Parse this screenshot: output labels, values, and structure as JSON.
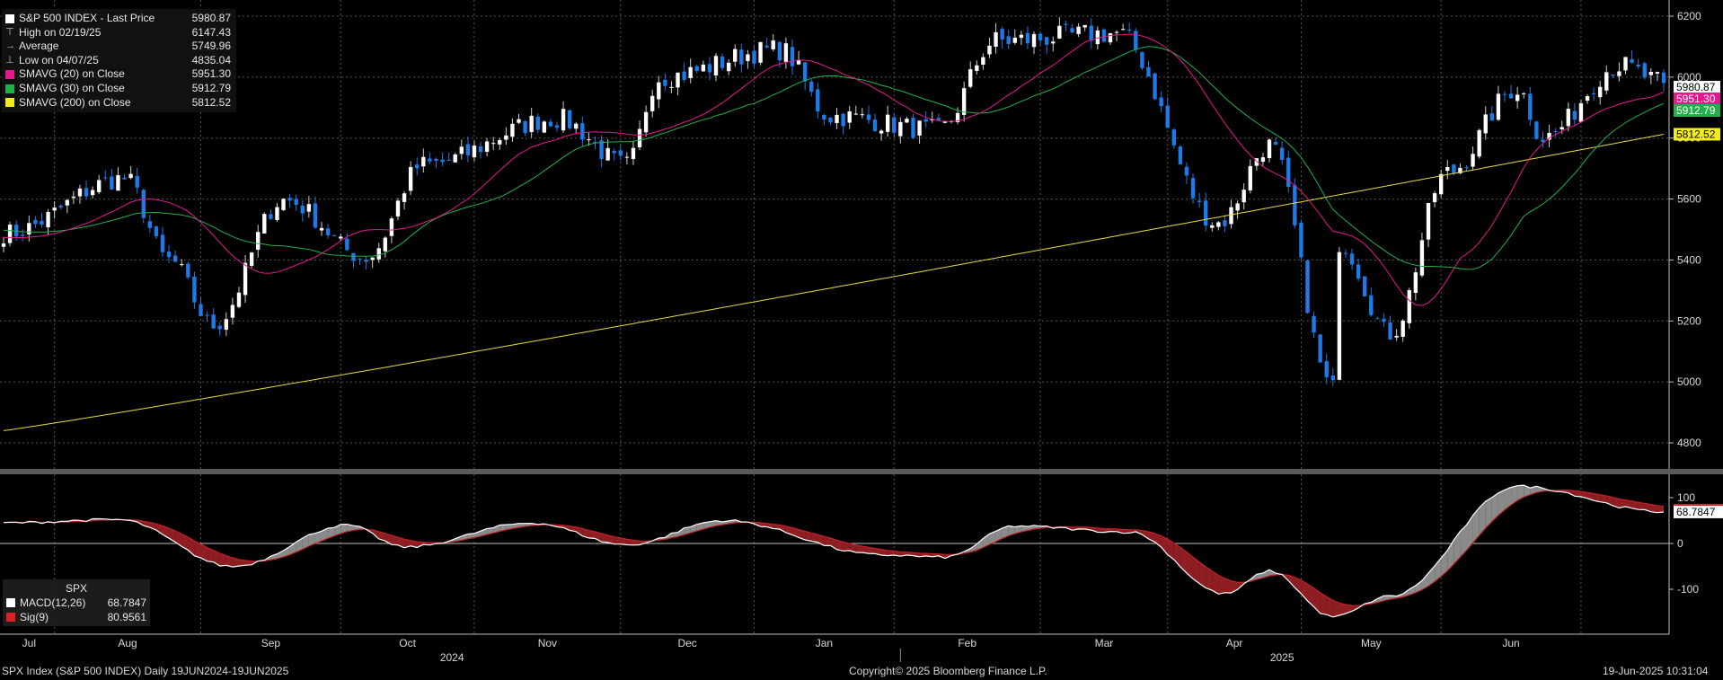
{
  "chart_data": [
    {
      "type": "candlestick",
      "title": "S&P 500 INDEX - Last Price",
      "last_price": 5980.87,
      "ylim": [
        4700,
        6250
      ],
      "y_ticks": [
        4800,
        5000,
        5200,
        5400,
        5600,
        5800,
        6000,
        6200
      ],
      "x_ticks": [
        "Jul",
        "Aug",
        "Sep",
        "Oct",
        "Nov",
        "Dec",
        "Jan",
        "Feb",
        "Mar",
        "Apr",
        "May",
        "Jun"
      ],
      "year_labels": [
        "2024",
        "2025"
      ],
      "grid": true,
      "legend_position": "top-left",
      "price_path": [
        {
          "x": "2024-06-19",
          "y": 5487
        },
        {
          "x": "2024-07-16",
          "y": 5667
        },
        {
          "x": "2024-07-25",
          "y": 5400
        },
        {
          "x": "2024-08-05",
          "y": 5186
        },
        {
          "x": "2024-08-20",
          "y": 5597
        },
        {
          "x": "2024-09-06",
          "y": 5408
        },
        {
          "x": "2024-09-19",
          "y": 5713
        },
        {
          "x": "2024-10-18",
          "y": 5864
        },
        {
          "x": "2024-11-04",
          "y": 5712
        },
        {
          "x": "2024-11-11",
          "y": 6001
        },
        {
          "x": "2024-12-06",
          "y": 6090
        },
        {
          "x": "2024-12-18",
          "y": 5872
        },
        {
          "x": "2025-01-10",
          "y": 5827
        },
        {
          "x": "2025-01-23",
          "y": 6119
        },
        {
          "x": "2025-02-19",
          "y": 6144
        },
        {
          "x": "2025-03-13",
          "y": 5521
        },
        {
          "x": "2025-03-25",
          "y": 5776
        },
        {
          "x": "2025-04-08",
          "y": 4982
        },
        {
          "x": "2025-04-09",
          "y": 5456
        },
        {
          "x": "2025-04-21",
          "y": 5158
        },
        {
          "x": "2025-05-02",
          "y": 5686
        },
        {
          "x": "2025-05-19",
          "y": 5963
        },
        {
          "x": "2025-05-23",
          "y": 5803
        },
        {
          "x": "2025-06-10",
          "y": 6038
        },
        {
          "x": "2025-06-19",
          "y": 5980.87
        }
      ],
      "legend": [
        {
          "label": "S&P 500 INDEX - Last Price",
          "value": "5980.87",
          "color": "#ffffff"
        },
        {
          "label": "High on 02/19/25",
          "value": "6147.43",
          "glyph": "⊤"
        },
        {
          "label": "Average",
          "value": "5749.96",
          "glyph": "→"
        },
        {
          "label": "Low on 04/07/25",
          "value": "4835.04",
          "glyph": "⊥"
        },
        {
          "label": "SMAVG (20)  on Close",
          "value": "5951.30",
          "color": "#e6178e"
        },
        {
          "label": "SMAVG (30)  on Close",
          "value": "5912.79",
          "color": "#22b04b"
        },
        {
          "label": "SMAVG (200)  on Close",
          "value": "5812.52",
          "color": "#f2ec1d"
        }
      ],
      "value_tags": [
        {
          "text": "5980.87",
          "value": 5980.87,
          "bg": "#ffffff",
          "fg": "#000000"
        },
        {
          "text": "5951.30",
          "value": 5951.3,
          "bg": "#e6178e",
          "fg": "#ffffff"
        },
        {
          "text": "5912.79",
          "value": 5912.79,
          "bg": "#22b04b",
          "fg": "#ffffff"
        },
        {
          "text": "5812.52",
          "value": 5812.52,
          "bg": "#f2ec1d",
          "fg": "#000000"
        }
      ],
      "colors": {
        "up": "#ffffff",
        "down": "#1c7be8",
        "sma20": "#e6178e",
        "sma30": "#22b04b",
        "sma200": "#e7d93d"
      }
    },
    {
      "type": "line",
      "title": "SPX",
      "ylim": [
        -150,
        150
      ],
      "y_ticks": [
        100,
        0,
        -100
      ],
      "y_tick_labels": [
        "100",
        "0",
        "-100"
      ],
      "series": [
        {
          "name": "MACD(12,26)",
          "value": "68.7847",
          "color": "#ffffff"
        },
        {
          "name": "Sig(9)",
          "value": "80.9561",
          "color": "#e02020"
        }
      ],
      "macd_path": [
        {
          "x": "2024-06-19",
          "y": 45
        },
        {
          "x": "2024-07-15",
          "y": 52
        },
        {
          "x": "2024-08-08",
          "y": -50
        },
        {
          "x": "2024-09-03",
          "y": 40
        },
        {
          "x": "2024-09-16",
          "y": -8
        },
        {
          "x": "2024-10-14",
          "y": 45
        },
        {
          "x": "2024-11-04",
          "y": -3
        },
        {
          "x": "2024-11-25",
          "y": 50
        },
        {
          "x": "2024-12-30",
          "y": -25
        },
        {
          "x": "2025-01-13",
          "y": -30
        },
        {
          "x": "2025-01-28",
          "y": 38
        },
        {
          "x": "2025-02-21",
          "y": 25
        },
        {
          "x": "2025-03-14",
          "y": -110
        },
        {
          "x": "2025-03-25",
          "y": -60
        },
        {
          "x": "2025-04-08",
          "y": -160
        },
        {
          "x": "2025-04-21",
          "y": -115
        },
        {
          "x": "2025-05-19",
          "y": 125
        },
        {
          "x": "2025-06-19",
          "y": 68.7847
        }
      ],
      "signal_tag": {
        "text": "68.7847",
        "value": 68.7847
      }
    }
  ],
  "footer": {
    "left": "SPX Index (S&P 500 INDEX)  Daily 19JUN2024-19JUN2025",
    "center": "Copyright© 2025 Bloomberg Finance L.P.",
    "right": "19-Jun-2025 10:31:04"
  }
}
